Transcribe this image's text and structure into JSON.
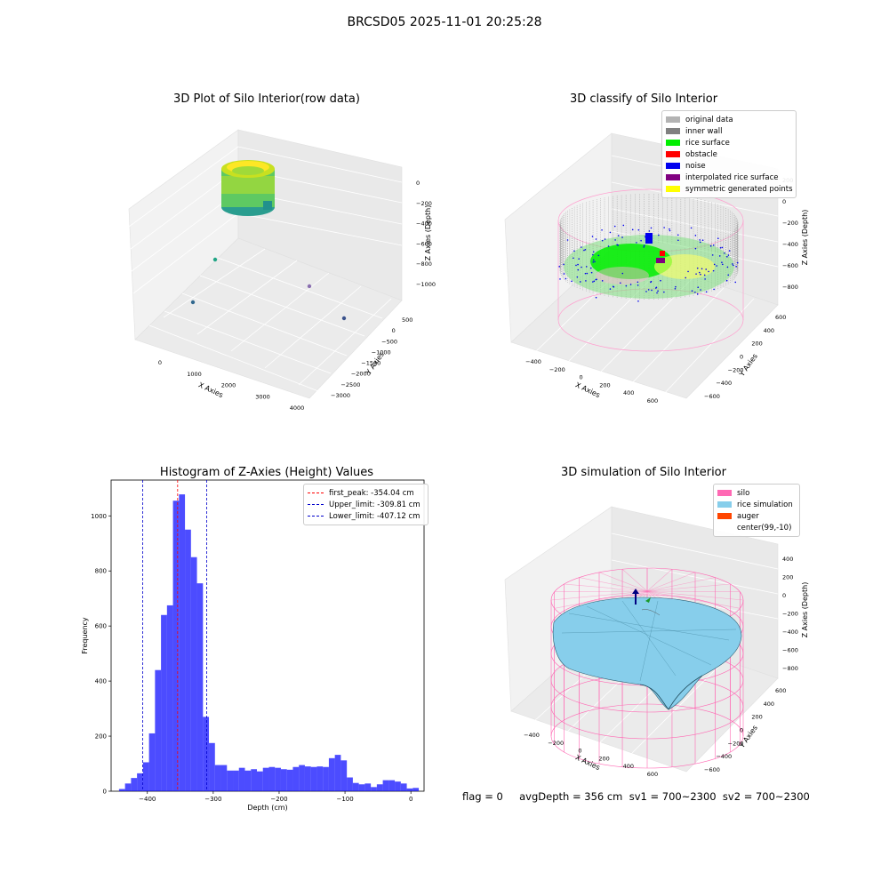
{
  "suptitle": "BRCSD05 2025-11-01 20:25:28",
  "panel1": {
    "title": "3D Plot of Silo Interior(row data)",
    "xlabel": "X Axies",
    "ylabel": "Y Axies",
    "zlabel": "Z Axies (Depth)",
    "xticks": [
      "0",
      "1000",
      "2000",
      "3000",
      "4000"
    ],
    "yticks": [
      "500",
      "0",
      "−500",
      "−1000",
      "−1500",
      "−2000",
      "−2500",
      "−3000"
    ],
    "zticks": [
      "0",
      "−200",
      "−400",
      "−600",
      "−800",
      "−1000"
    ]
  },
  "panel2": {
    "title": "3D classify of Silo Interior",
    "xlabel": "X Axies",
    "ylabel": "Y Axies",
    "zlabel": "Z Axies (Depth)",
    "xticks": [
      "−400",
      "−200",
      "0",
      "200",
      "400",
      "600"
    ],
    "yticks": [
      "600",
      "400",
      "200",
      "0",
      "−200",
      "−400",
      "−600"
    ],
    "zticks": [
      "200",
      "0",
      "−200",
      "−400",
      "−600",
      "−800"
    ],
    "legend": [
      {
        "label": "original data",
        "color": "#b3b3b3"
      },
      {
        "label": "inner wall",
        "color": "#808080"
      },
      {
        "label": "rice surface",
        "color": "#00ee00"
      },
      {
        "label": "obstacle",
        "color": "#ff0000"
      },
      {
        "label": "noise",
        "color": "#0000ee"
      },
      {
        "label": "interpolated rice surface",
        "color": "#800080"
      },
      {
        "label": "symmetric generated points",
        "color": "#ffff00"
      }
    ]
  },
  "panel3": {
    "title": "Histogram of Z-Axies (Height) Values",
    "xlabel": "Depth (cm)",
    "ylabel": "Frequency",
    "legend": [
      {
        "label": "first_peak: -354.04 cm",
        "color": "#ff0000"
      },
      {
        "label": "Upper_limit: -309.81 cm",
        "color": "#0000cc"
      },
      {
        "label": "Lower_limit: -407.12 cm",
        "color": "#0000cc"
      }
    ]
  },
  "panel4": {
    "title": "3D simulation of Silo Interior",
    "xlabel": "X Axies",
    "ylabel": "Y Axies",
    "zlabel": "Z Axies (Depth)",
    "xticks": [
      "−400",
      "−200",
      "0",
      "200",
      "400",
      "600"
    ],
    "yticks": [
      "600",
      "400",
      "200",
      "0",
      "−200",
      "−400",
      "−600"
    ],
    "zticks": [
      "400",
      "200",
      "0",
      "−200",
      "−400",
      "−600",
      "−800"
    ],
    "legend": [
      {
        "label": "silo",
        "color": "#ff69b4"
      },
      {
        "label": "rice simulation",
        "color": "#87ceeb"
      },
      {
        "label": "auger",
        "color": "#ff4500"
      },
      {
        "label": "center(99,-10)",
        "color": "#ffffff"
      }
    ]
  },
  "footer": "flag = 0     avgDepth = 356 cm  sv1 = 700~2300  sv2 = 700~2300",
  "chart_data": {
    "type": "bar",
    "title": "Histogram of Z-Axies (Height) Values",
    "xlabel": "Depth (cm)",
    "ylabel": "Frequency",
    "xlim": [
      -455,
      20
    ],
    "ylim": [
      0,
      1130
    ],
    "xticks": [
      -400,
      -300,
      -200,
      -100,
      0
    ],
    "yticks": [
      0,
      200,
      400,
      600,
      800,
      1000
    ],
    "bar_color": "#0000ff",
    "bin_start": -443,
    "bin_width": 9.1,
    "values": [
      8,
      28,
      48,
      65,
      105,
      210,
      440,
      640,
      675,
      1055,
      1078,
      950,
      850,
      755,
      270,
      175,
      95,
      95,
      75,
      75,
      85,
      75,
      80,
      72,
      85,
      88,
      85,
      80,
      78,
      88,
      95,
      90,
      88,
      90,
      88,
      120,
      132,
      112,
      50,
      30,
      25,
      28,
      15,
      25,
      40,
      40,
      35,
      28,
      10,
      12
    ],
    "vlines": [
      {
        "name": "first_peak",
        "x": -354.04,
        "color": "#ff0000"
      },
      {
        "name": "Upper_limit",
        "x": -309.81,
        "color": "#0000cc"
      },
      {
        "name": "Lower_limit",
        "x": -407.12,
        "color": "#0000cc"
      }
    ]
  }
}
